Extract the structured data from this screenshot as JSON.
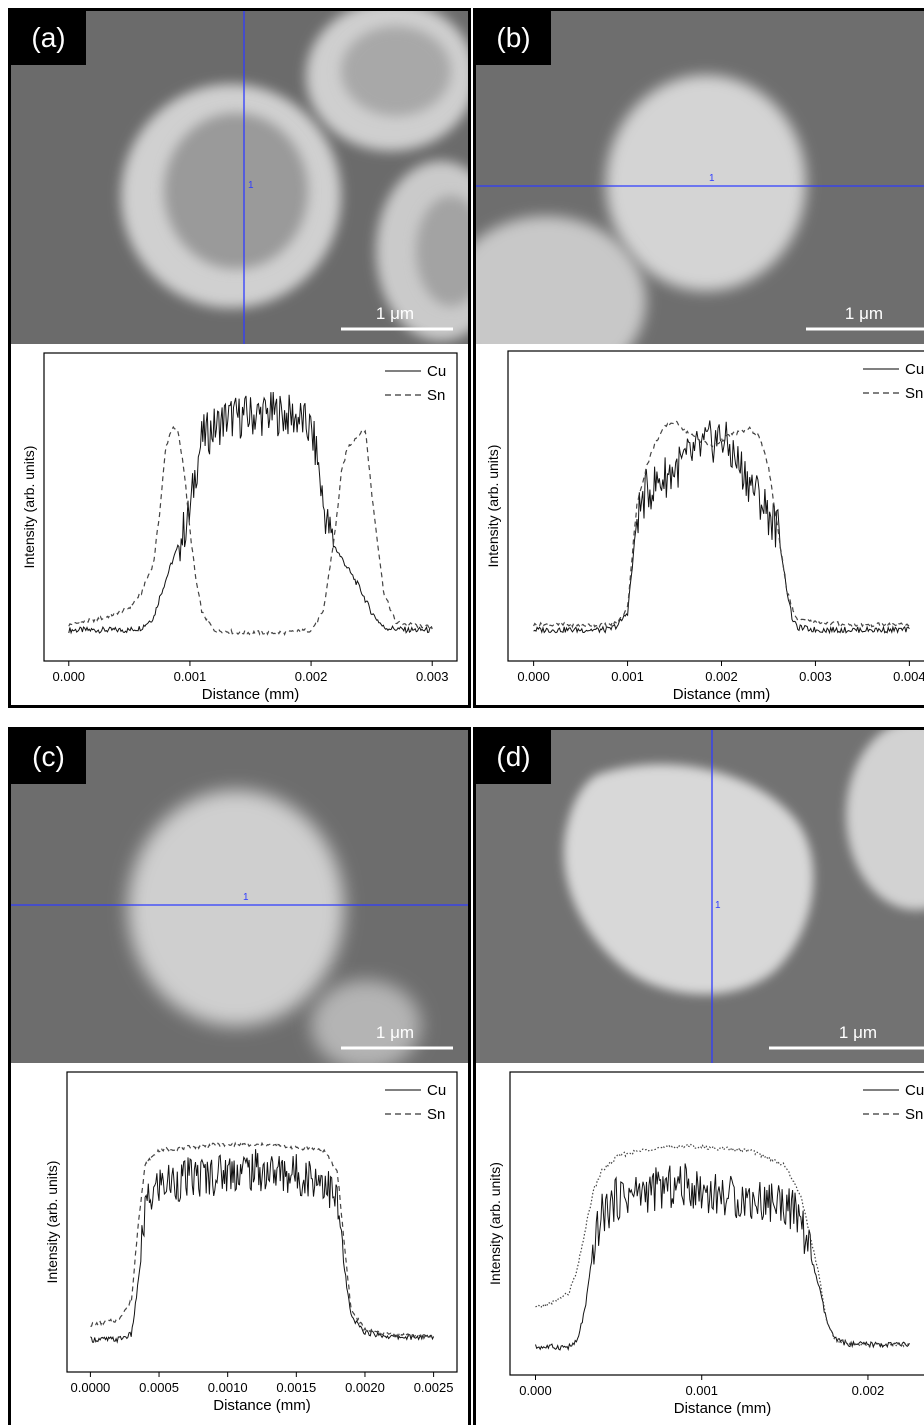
{
  "colors": {
    "panel_border": "#000000",
    "micrograph_bg": "#6b6b6b",
    "particle_light": "#d6d6d6",
    "particle_core": "#9a9a9a",
    "scan_line": "#2f3cff",
    "scale_bar": "#ffffff",
    "cu_series": "#111111",
    "sn_series": "#444444"
  },
  "panels": [
    {
      "label": "(a)",
      "scan_marker": "1",
      "scale_bar_label": "1 μm",
      "chart_data": {
        "type": "line",
        "xlabel": "Distance (mm)",
        "ylabel": "Intensity (arb. units)",
        "xlim": [
          0,
          0.003
        ],
        "ylim": [
          0,
          1
        ],
        "x_ticks": [
          "0.000",
          "0.001",
          "0.002",
          "0.003"
        ],
        "x_tick_values": [
          0,
          0.001,
          0.002,
          0.003
        ],
        "legend_position": "top-right",
        "series": [
          {
            "name": "Cu",
            "dash": "solid",
            "x": [
              0,
              0.0005,
              0.0006,
              0.0007,
              0.00075,
              0.0008,
              0.00085,
              0.0009,
              0.00095,
              0.001,
              0.00105,
              0.0011,
              0.0013,
              0.0015,
              0.0017,
              0.0019,
              0.002,
              0.00205,
              0.0021,
              0.00215,
              0.0022,
              0.0023,
              0.0024,
              0.0025,
              0.0026,
              0.0028,
              0.003
            ],
            "y": [
              0.05,
              0.05,
              0.06,
              0.1,
              0.18,
              0.25,
              0.32,
              0.38,
              0.45,
              0.52,
              0.7,
              0.82,
              0.9,
              0.91,
              0.92,
              0.9,
              0.85,
              0.75,
              0.55,
              0.45,
              0.38,
              0.3,
              0.22,
              0.12,
              0.06,
              0.05,
              0.05
            ]
          },
          {
            "name": "Sn",
            "dash": "dashed",
            "x": [
              0,
              0.0003,
              0.0005,
              0.0006,
              0.0007,
              0.00075,
              0.0008,
              0.00085,
              0.0009,
              0.00095,
              0.001,
              0.00105,
              0.0011,
              0.0012,
              0.0014,
              0.0016,
              0.0018,
              0.002,
              0.0021,
              0.0022,
              0.00225,
              0.0023,
              0.0024,
              0.00245,
              0.0025,
              0.0026,
              0.0027,
              0.003
            ],
            "y": [
              0.07,
              0.1,
              0.14,
              0.2,
              0.32,
              0.52,
              0.78,
              0.86,
              0.85,
              0.7,
              0.45,
              0.25,
              0.12,
              0.05,
              0.04,
              0.04,
              0.04,
              0.05,
              0.12,
              0.45,
              0.68,
              0.78,
              0.84,
              0.85,
              0.6,
              0.2,
              0.08,
              0.06
            ]
          }
        ]
      }
    },
    {
      "label": "(b)",
      "scan_marker": "1",
      "scale_bar_label": "1 μm",
      "chart_data": {
        "type": "line",
        "xlabel": "Distance (mm)",
        "ylabel": "Intensity (arb. units)",
        "xlim": [
          0,
          0.004
        ],
        "ylim": [
          0,
          1
        ],
        "x_ticks": [
          "0.000",
          "0.001",
          "0.002",
          "0.003",
          "0.004"
        ],
        "x_tick_values": [
          0,
          0.001,
          0.002,
          0.003,
          0.004
        ],
        "legend_position": "top-right",
        "series": [
          {
            "name": "Cu",
            "dash": "solid",
            "x": [
              0,
              0.0008,
              0.0009,
              0.001,
              0.00105,
              0.0011,
              0.0012,
              0.0014,
              0.0016,
              0.0018,
              0.002,
              0.0022,
              0.0024,
              0.0026,
              0.0027,
              0.00275,
              0.0028,
              0.003,
              0.0035,
              0.004
            ],
            "y": [
              0.05,
              0.05,
              0.07,
              0.12,
              0.3,
              0.5,
              0.6,
              0.66,
              0.72,
              0.78,
              0.82,
              0.7,
              0.58,
              0.45,
              0.2,
              0.1,
              0.06,
              0.05,
              0.05,
              0.05
            ]
          },
          {
            "name": "Sn",
            "dash": "dashed",
            "x": [
              0,
              0.0008,
              0.0009,
              0.001,
              0.00105,
              0.0011,
              0.0012,
              0.0013,
              0.0014,
              0.0015,
              0.0017,
              0.0019,
              0.0021,
              0.0023,
              0.0024,
              0.0025,
              0.0026,
              0.0027,
              0.0028,
              0.003,
              0.0035,
              0.004
            ],
            "y": [
              0.07,
              0.07,
              0.08,
              0.14,
              0.35,
              0.55,
              0.7,
              0.8,
              0.86,
              0.88,
              0.82,
              0.78,
              0.83,
              0.85,
              0.82,
              0.7,
              0.45,
              0.2,
              0.09,
              0.08,
              0.07,
              0.07
            ]
          }
        ]
      }
    },
    {
      "label": "(c)",
      "scan_marker": "1",
      "scale_bar_label": "1 μm",
      "chart_data": {
        "type": "line",
        "xlabel": "Distance (mm)",
        "ylabel": "Intensity (arb. units)",
        "xlim": [
          0,
          0.0025
        ],
        "ylim": [
          0,
          1
        ],
        "x_ticks": [
          "0.0000",
          "0.0005",
          "0.0010",
          "0.0015",
          "0.0020",
          "0.0025"
        ],
        "x_tick_values": [
          0,
          0.0005,
          0.001,
          0.0015,
          0.002,
          0.0025
        ],
        "legend_position": "top-right",
        "series": [
          {
            "name": "Cu",
            "dash": "solid",
            "x": [
              0,
              0.0002,
              0.0003,
              0.00035,
              0.0004,
              0.0005,
              0.0007,
              0.0009,
              0.0011,
              0.0013,
              0.0015,
              0.0017,
              0.0018,
              0.00185,
              0.0019,
              0.002,
              0.0022,
              0.0025
            ],
            "y": [
              0.06,
              0.06,
              0.08,
              0.3,
              0.6,
              0.7,
              0.72,
              0.74,
              0.76,
              0.75,
              0.74,
              0.72,
              0.62,
              0.35,
              0.15,
              0.09,
              0.07,
              0.07
            ]
          },
          {
            "name": "Sn",
            "dash": "dashed",
            "x": [
              0,
              0.0002,
              0.0003,
              0.00035,
              0.0004,
              0.0005,
              0.0007,
              0.0009,
              0.0011,
              0.0013,
              0.0015,
              0.0017,
              0.0018,
              0.00185,
              0.0019,
              0.002,
              0.0022,
              0.0025
            ],
            "y": [
              0.12,
              0.14,
              0.22,
              0.55,
              0.78,
              0.84,
              0.85,
              0.86,
              0.86,
              0.86,
              0.85,
              0.84,
              0.75,
              0.45,
              0.18,
              0.1,
              0.08,
              0.07
            ]
          }
        ]
      }
    },
    {
      "label": "(d)",
      "scan_marker": "1",
      "scale_bar_label": "1 μm",
      "chart_data": {
        "type": "line",
        "xlabel": "Distance (mm)",
        "ylabel": "Intensity (arb. units)",
        "xlim": [
          0,
          0.00225
        ],
        "ylim": [
          0,
          1
        ],
        "x_ticks": [
          "0.000",
          "0.001",
          "0.002"
        ],
        "x_tick_values": [
          0,
          0.001,
          0.002
        ],
        "legend_position": "top-right",
        "series": [
          {
            "name": "Cu",
            "dash": "solid",
            "x": [
              0,
              0.0002,
              0.00025,
              0.0003,
              0.00035,
              0.0004,
              0.0005,
              0.0007,
              0.0009,
              0.0011,
              0.0013,
              0.0015,
              0.0016,
              0.0017,
              0.00175,
              0.0018,
              0.0019,
              0.00225
            ],
            "y": [
              0.04,
              0.04,
              0.06,
              0.2,
              0.45,
              0.58,
              0.65,
              0.68,
              0.7,
              0.66,
              0.64,
              0.63,
              0.55,
              0.3,
              0.15,
              0.07,
              0.05,
              0.05
            ]
          },
          {
            "name": "Sn",
            "dash": "dotted",
            "x": [
              0,
              0.0001,
              0.0002,
              0.00025,
              0.0003,
              0.00035,
              0.0004,
              0.0005,
              0.0007,
              0.0009,
              0.0011,
              0.0013,
              0.0015,
              0.0016,
              0.0017,
              0.00175,
              0.0018,
              0.0019,
              0.00225
            ],
            "y": [
              0.2,
              0.22,
              0.26,
              0.35,
              0.52,
              0.68,
              0.76,
              0.82,
              0.85,
              0.86,
              0.85,
              0.84,
              0.78,
              0.65,
              0.35,
              0.15,
              0.07,
              0.05,
              0.05
            ]
          }
        ]
      }
    }
  ]
}
